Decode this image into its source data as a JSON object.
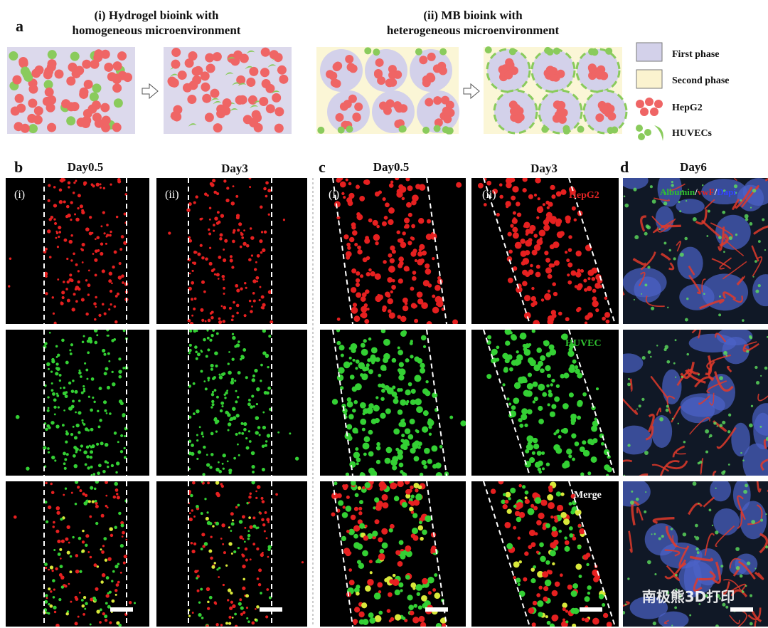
{
  "panel_a": {
    "label": "a",
    "left_title": [
      "(i) Hydrogel bioink with",
      "homogeneous microenvironment"
    ],
    "right_title": [
      "(ii) MB bioink with",
      "heterogeneous microenvironment"
    ],
    "legend": [
      "First phase",
      "Second phase",
      "HepG2",
      "HUVECs"
    ]
  },
  "panel_b": {
    "label": "b",
    "columns": [
      "Day0.5",
      "Day3"
    ],
    "roman": [
      "(i)",
      "(ii)"
    ]
  },
  "panel_c": {
    "label": "c",
    "columns": [
      "Day0.5",
      "Day3"
    ],
    "roman": [
      "(i)",
      "(ii)"
    ],
    "channels": [
      "HepG2",
      "HUVEC",
      "Merge"
    ]
  },
  "panel_d": {
    "label": "d",
    "column": "Day6",
    "stain": [
      "Albumin",
      "/",
      "vwF",
      "/",
      "Dapi"
    ]
  },
  "watermark": "南极熊3D打印"
}
